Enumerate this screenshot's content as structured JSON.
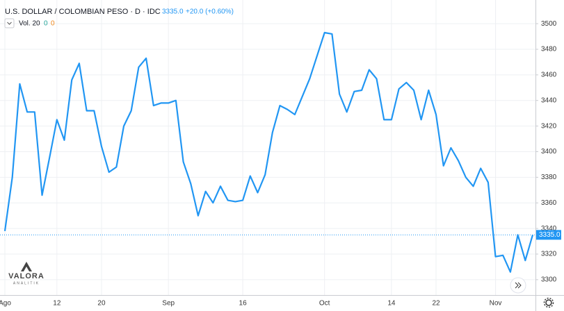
{
  "chart_data": {
    "type": "line",
    "title": "U.S. DOLLAR / COLOMBIAN PESO · D · IDC",
    "header_price": "3335.0",
    "header_change": "+20.0 (+0.60%)",
    "volume_label": "Vol. 20",
    "volume_values": [
      "0",
      "0"
    ],
    "logo": {
      "name": "VALORA",
      "sub": "ANALITIK"
    },
    "categories": [
      "Ago",
      null,
      null,
      null,
      null,
      null,
      null,
      "12",
      null,
      null,
      null,
      null,
      null,
      "20",
      null,
      null,
      null,
      null,
      null,
      null,
      null,
      null,
      "Sep",
      null,
      null,
      null,
      null,
      null,
      null,
      null,
      null,
      null,
      "16",
      null,
      null,
      null,
      null,
      null,
      null,
      null,
      null,
      null,
      null,
      "Oct",
      null,
      null,
      null,
      null,
      null,
      null,
      null,
      null,
      "14",
      null,
      null,
      null,
      null,
      null,
      "22",
      null,
      null,
      null,
      null,
      null,
      null,
      null,
      "Nov",
      null,
      null,
      null,
      null,
      null
    ],
    "series": [
      {
        "name": "USD/COP",
        "color": "#2196f3",
        "values": [
          3338,
          3380,
          3453,
          3431,
          3431,
          3366,
          3395,
          3425,
          3409,
          3456,
          3469,
          3432,
          3432,
          3404,
          3384,
          3388,
          3420,
          3432,
          3466,
          3473,
          3436,
          3438,
          3438,
          3440,
          3392,
          3375,
          3350,
          3369,
          3360,
          3373,
          3362,
          3361,
          3362,
          3381,
          3368,
          3382,
          3415,
          3436,
          3433,
          3429,
          3443,
          3457,
          3475,
          3493,
          3492,
          3445,
          3431,
          3447,
          3448,
          3464,
          3457,
          3425,
          3425,
          3449,
          3454,
          3448,
          3425,
          3448,
          3429,
          3389,
          3403,
          3393,
          3380,
          3373,
          3387,
          3376,
          3318,
          3319,
          3306,
          3335,
          3315,
          3335
        ]
      }
    ],
    "last_price": {
      "value": 3335,
      "label": "3335.0"
    },
    "ylim": [
      3288,
      3518.5
    ],
    "yticks": [
      3300,
      3320,
      3340,
      3360,
      3380,
      3400,
      3420,
      3440,
      3460,
      3480,
      3500
    ],
    "grid": true
  }
}
